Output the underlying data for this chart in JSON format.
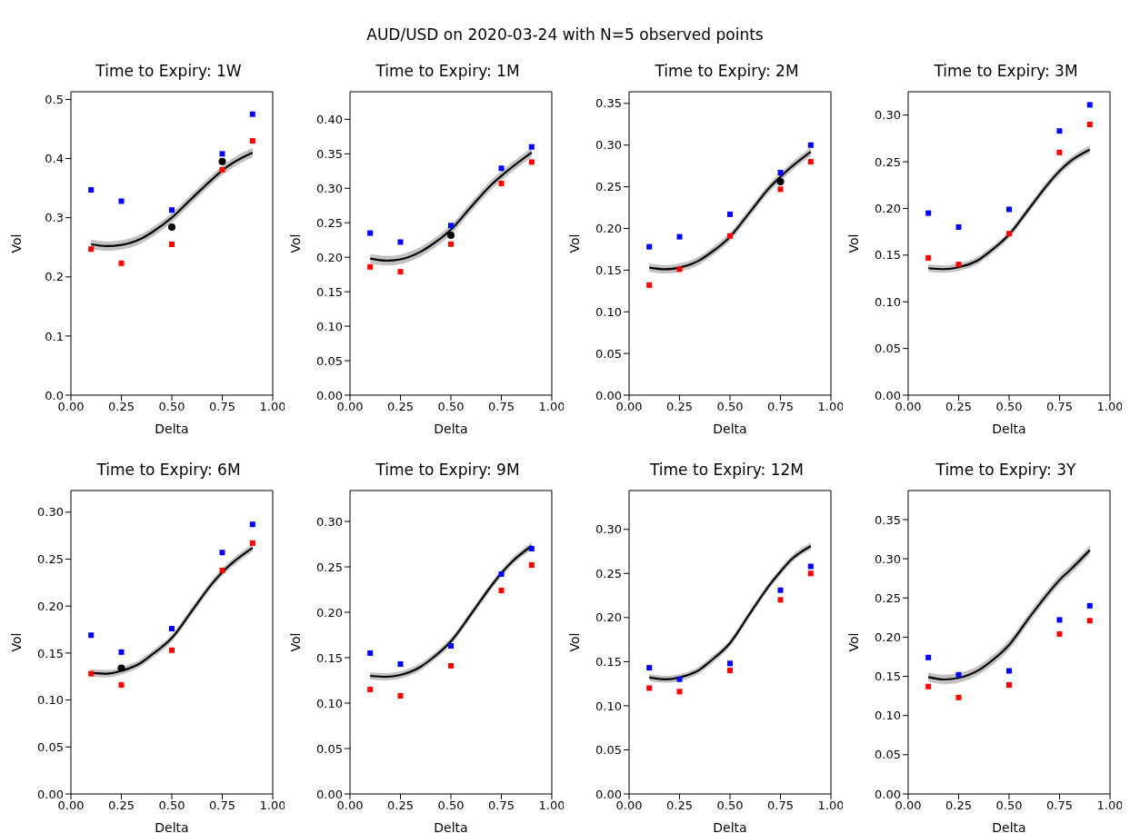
{
  "chart_data": [
    {
      "type": "line",
      "title": "Time to Expiry: 1W",
      "xlabel": "Delta",
      "ylabel": "Vol",
      "annotations": [
        "AUD/USD on 2020-03-24 with N=5 observed points"
      ],
      "xlim": [
        0,
        1
      ],
      "xticks": [
        {
          "value": 0,
          "label": "0.00"
        },
        {
          "value": 0.25,
          "label": "0.25"
        },
        {
          "value": 0.5,
          "label": "0.50"
        },
        {
          "value": 0.75,
          "label": "0.75"
        },
        {
          "value": 1,
          "label": "1.00"
        }
      ],
      "ylim": [
        0,
        0.513
      ],
      "yticks": [
        {
          "value": 0,
          "label": "0.0"
        },
        {
          "value": 0.1,
          "label": "0.1"
        },
        {
          "value": 0.2,
          "label": "0.2"
        },
        {
          "value": 0.3,
          "label": "0.3"
        },
        {
          "value": 0.4,
          "label": "0.4"
        },
        {
          "value": 0.5,
          "label": "0.5"
        }
      ],
      "series": [
        {
          "type": "line",
          "color": "#000000",
          "marker": "none",
          "x": [
            0.1,
            0.18,
            0.25,
            0.35,
            0.4,
            0.5,
            0.6,
            0.7,
            0.75,
            0.8,
            0.9
          ],
          "values": [
            0.255,
            0.252,
            0.254,
            0.265,
            0.275,
            0.3,
            0.333,
            0.365,
            0.38,
            0.392,
            0.41
          ],
          "lower": [
            0.247,
            0.244,
            0.246,
            0.257,
            0.267,
            0.292,
            0.325,
            0.357,
            0.372,
            0.384,
            0.402
          ],
          "upper": [
            0.263,
            0.26,
            0.262,
            0.273,
            0.283,
            0.308,
            0.341,
            0.373,
            0.388,
            0.4,
            0.418
          ]
        },
        {
          "type": "scatter",
          "color": "#0000ff",
          "marker": "square",
          "x": [
            0.1,
            0.25,
            0.5,
            0.75,
            0.9
          ],
          "values": [
            0.347,
            0.328,
            0.313,
            0.408,
            0.475
          ]
        },
        {
          "type": "scatter",
          "color": "#ff0000",
          "marker": "square",
          "x": [
            0.1,
            0.25,
            0.5,
            0.75,
            0.9
          ],
          "values": [
            0.247,
            0.223,
            0.255,
            0.381,
            0.43
          ]
        },
        {
          "type": "scatter",
          "color": "#000000",
          "marker": "circle",
          "x": [
            0.5,
            0.75
          ],
          "values": [
            0.284,
            0.395
          ]
        }
      ]
    },
    {
      "type": "line",
      "title": "Time to Expiry: 1M",
      "xlabel": "Delta",
      "ylabel": "Vol",
      "xlim": [
        0,
        1
      ],
      "xticks": [
        {
          "value": 0,
          "label": "0.00"
        },
        {
          "value": 0.25,
          "label": "0.25"
        },
        {
          "value": 0.5,
          "label": "0.50"
        },
        {
          "value": 0.75,
          "label": "0.75"
        },
        {
          "value": 1,
          "label": "1.00"
        }
      ],
      "ylim": [
        0,
        0.44
      ],
      "yticks": [
        {
          "value": 0,
          "label": "0.00"
        },
        {
          "value": 0.05,
          "label": "0.05"
        },
        {
          "value": 0.1,
          "label": "0.10"
        },
        {
          "value": 0.15,
          "label": "0.15"
        },
        {
          "value": 0.2,
          "label": "0.20"
        },
        {
          "value": 0.25,
          "label": "0.25"
        },
        {
          "value": 0.3,
          "label": "0.30"
        },
        {
          "value": 0.35,
          "label": "0.35"
        },
        {
          "value": 0.4,
          "label": "0.40"
        }
      ],
      "series": [
        {
          "type": "line",
          "color": "#000000",
          "marker": "none",
          "x": [
            0.1,
            0.18,
            0.25,
            0.35,
            0.4,
            0.5,
            0.6,
            0.7,
            0.75,
            0.8,
            0.9
          ],
          "values": [
            0.198,
            0.195,
            0.197,
            0.208,
            0.217,
            0.24,
            0.273,
            0.305,
            0.318,
            0.33,
            0.352
          ],
          "lower": [
            0.191,
            0.188,
            0.19,
            0.201,
            0.21,
            0.233,
            0.266,
            0.298,
            0.311,
            0.323,
            0.345
          ],
          "upper": [
            0.205,
            0.202,
            0.204,
            0.215,
            0.224,
            0.247,
            0.28,
            0.312,
            0.325,
            0.337,
            0.359
          ]
        },
        {
          "type": "scatter",
          "color": "#0000ff",
          "marker": "square",
          "x": [
            0.1,
            0.25,
            0.5,
            0.75,
            0.9
          ],
          "values": [
            0.235,
            0.222,
            0.246,
            0.329,
            0.36
          ]
        },
        {
          "type": "scatter",
          "color": "#ff0000",
          "marker": "square",
          "x": [
            0.1,
            0.25,
            0.5,
            0.75,
            0.9
          ],
          "values": [
            0.186,
            0.179,
            0.219,
            0.307,
            0.338
          ]
        },
        {
          "type": "scatter",
          "color": "#000000",
          "marker": "circle",
          "x": [
            0.5
          ],
          "values": [
            0.232
          ]
        }
      ]
    },
    {
      "type": "line",
      "title": "Time to Expiry: 2M",
      "xlabel": "Delta",
      "ylabel": "Vol",
      "xlim": [
        0,
        1
      ],
      "xticks": [
        {
          "value": 0,
          "label": "0.00"
        },
        {
          "value": 0.25,
          "label": "0.25"
        },
        {
          "value": 0.5,
          "label": "0.50"
        },
        {
          "value": 0.75,
          "label": "0.75"
        },
        {
          "value": 1,
          "label": "1.00"
        }
      ],
      "ylim": [
        0,
        0.364
      ],
      "yticks": [
        {
          "value": 0,
          "label": "0.00"
        },
        {
          "value": 0.05,
          "label": "0.05"
        },
        {
          "value": 0.1,
          "label": "0.10"
        },
        {
          "value": 0.15,
          "label": "0.15"
        },
        {
          "value": 0.2,
          "label": "0.20"
        },
        {
          "value": 0.25,
          "label": "0.25"
        },
        {
          "value": 0.3,
          "label": "0.30"
        },
        {
          "value": 0.35,
          "label": "0.35"
        }
      ],
      "series": [
        {
          "type": "line",
          "color": "#000000",
          "marker": "none",
          "x": [
            0.1,
            0.18,
            0.25,
            0.35,
            0.4,
            0.5,
            0.6,
            0.7,
            0.75,
            0.8,
            0.9
          ],
          "values": [
            0.153,
            0.151,
            0.153,
            0.162,
            0.17,
            0.19,
            0.22,
            0.25,
            0.262,
            0.273,
            0.292
          ],
          "lower": [
            0.148,
            0.146,
            0.148,
            0.157,
            0.165,
            0.185,
            0.215,
            0.245,
            0.257,
            0.268,
            0.287
          ],
          "upper": [
            0.158,
            0.156,
            0.158,
            0.167,
            0.175,
            0.195,
            0.225,
            0.255,
            0.267,
            0.278,
            0.297
          ]
        },
        {
          "type": "scatter",
          "color": "#0000ff",
          "marker": "square",
          "x": [
            0.1,
            0.25,
            0.5,
            0.75,
            0.9
          ],
          "values": [
            0.178,
            0.19,
            0.217,
            0.267,
            0.3
          ]
        },
        {
          "type": "scatter",
          "color": "#ff0000",
          "marker": "square",
          "x": [
            0.1,
            0.25,
            0.5,
            0.75,
            0.9
          ],
          "values": [
            0.132,
            0.151,
            0.191,
            0.247,
            0.28
          ]
        },
        {
          "type": "scatter",
          "color": "#000000",
          "marker": "circle",
          "x": [
            0.75
          ],
          "values": [
            0.256
          ]
        }
      ]
    },
    {
      "type": "line",
      "title": "Time to Expiry: 3M",
      "xlabel": "Delta",
      "ylabel": "Vol",
      "xlim": [
        0,
        1
      ],
      "xticks": [
        {
          "value": 0,
          "label": "0.00"
        },
        {
          "value": 0.25,
          "label": "0.25"
        },
        {
          "value": 0.5,
          "label": "0.50"
        },
        {
          "value": 0.75,
          "label": "0.75"
        },
        {
          "value": 1,
          "label": "1.00"
        }
      ],
      "ylim": [
        0,
        0.325
      ],
      "yticks": [
        {
          "value": 0,
          "label": "0.00"
        },
        {
          "value": 0.05,
          "label": "0.05"
        },
        {
          "value": 0.1,
          "label": "0.10"
        },
        {
          "value": 0.15,
          "label": "0.15"
        },
        {
          "value": 0.2,
          "label": "0.20"
        },
        {
          "value": 0.25,
          "label": "0.25"
        },
        {
          "value": 0.3,
          "label": "0.30"
        }
      ],
      "series": [
        {
          "type": "line",
          "color": "#000000",
          "marker": "none",
          "x": [
            0.1,
            0.18,
            0.25,
            0.35,
            0.4,
            0.5,
            0.6,
            0.7,
            0.75,
            0.8,
            0.9
          ],
          "values": [
            0.136,
            0.135,
            0.137,
            0.145,
            0.153,
            0.172,
            0.2,
            0.228,
            0.24,
            0.25,
            0.263
          ],
          "lower": [
            0.132,
            0.131,
            0.133,
            0.141,
            0.149,
            0.168,
            0.196,
            0.224,
            0.236,
            0.246,
            0.259
          ],
          "upper": [
            0.14,
            0.139,
            0.141,
            0.149,
            0.157,
            0.176,
            0.204,
            0.232,
            0.244,
            0.254,
            0.267
          ]
        },
        {
          "type": "scatter",
          "color": "#0000ff",
          "marker": "square",
          "x": [
            0.1,
            0.25,
            0.5,
            0.75,
            0.9
          ],
          "values": [
            0.195,
            0.18,
            0.199,
            0.283,
            0.311
          ]
        },
        {
          "type": "scatter",
          "color": "#ff0000",
          "marker": "square",
          "x": [
            0.1,
            0.25,
            0.5,
            0.75,
            0.9
          ],
          "values": [
            0.147,
            0.14,
            0.173,
            0.26,
            0.29
          ]
        }
      ]
    },
    {
      "type": "line",
      "title": "Time to Expiry: 6M",
      "xlabel": "Delta",
      "ylabel": "Vol",
      "xlim": [
        0,
        1
      ],
      "xticks": [
        {
          "value": 0,
          "label": "0.00"
        },
        {
          "value": 0.25,
          "label": "0.25"
        },
        {
          "value": 0.5,
          "label": "0.50"
        },
        {
          "value": 0.75,
          "label": "0.75"
        },
        {
          "value": 1,
          "label": "1.00"
        }
      ],
      "ylim": [
        0,
        0.323
      ],
      "yticks": [
        {
          "value": 0,
          "label": "0.00"
        },
        {
          "value": 0.05,
          "label": "0.05"
        },
        {
          "value": 0.1,
          "label": "0.10"
        },
        {
          "value": 0.15,
          "label": "0.15"
        },
        {
          "value": 0.2,
          "label": "0.20"
        },
        {
          "value": 0.25,
          "label": "0.25"
        },
        {
          "value": 0.3,
          "label": "0.30"
        }
      ],
      "series": [
        {
          "type": "line",
          "color": "#000000",
          "marker": "none",
          "x": [
            0.1,
            0.18,
            0.25,
            0.35,
            0.4,
            0.5,
            0.6,
            0.7,
            0.75,
            0.8,
            0.9
          ],
          "values": [
            0.129,
            0.128,
            0.131,
            0.14,
            0.148,
            0.166,
            0.195,
            0.224,
            0.236,
            0.246,
            0.262
          ],
          "lower": [
            0.125,
            0.124,
            0.127,
            0.136,
            0.144,
            0.162,
            0.191,
            0.22,
            0.232,
            0.242,
            0.258
          ],
          "upper": [
            0.133,
            0.132,
            0.135,
            0.144,
            0.152,
            0.17,
            0.199,
            0.228,
            0.24,
            0.25,
            0.266
          ]
        },
        {
          "type": "scatter",
          "color": "#0000ff",
          "marker": "square",
          "x": [
            0.1,
            0.25,
            0.5,
            0.75,
            0.9
          ],
          "values": [
            0.169,
            0.151,
            0.176,
            0.257,
            0.287
          ]
        },
        {
          "type": "scatter",
          "color": "#ff0000",
          "marker": "square",
          "x": [
            0.1,
            0.25,
            0.5,
            0.75,
            0.9
          ],
          "values": [
            0.128,
            0.116,
            0.153,
            0.238,
            0.267
          ]
        },
        {
          "type": "scatter",
          "color": "#000000",
          "marker": "circle",
          "x": [
            0.25
          ],
          "values": [
            0.134
          ]
        }
      ]
    },
    {
      "type": "line",
      "title": "Time to Expiry: 9M",
      "xlabel": "Delta",
      "ylabel": "Vol",
      "xlim": [
        0,
        1
      ],
      "xticks": [
        {
          "value": 0,
          "label": "0.00"
        },
        {
          "value": 0.25,
          "label": "0.25"
        },
        {
          "value": 0.5,
          "label": "0.50"
        },
        {
          "value": 0.75,
          "label": "0.75"
        },
        {
          "value": 1,
          "label": "1.00"
        }
      ],
      "ylim": [
        0,
        0.334
      ],
      "yticks": [
        {
          "value": 0,
          "label": "0.00"
        },
        {
          "value": 0.05,
          "label": "0.05"
        },
        {
          "value": 0.1,
          "label": "0.10"
        },
        {
          "value": 0.15,
          "label": "0.15"
        },
        {
          "value": 0.2,
          "label": "0.20"
        },
        {
          "value": 0.25,
          "label": "0.25"
        },
        {
          "value": 0.3,
          "label": "0.30"
        }
      ],
      "series": [
        {
          "type": "line",
          "color": "#000000",
          "marker": "none",
          "x": [
            0.1,
            0.18,
            0.25,
            0.35,
            0.4,
            0.5,
            0.6,
            0.7,
            0.75,
            0.8,
            0.9
          ],
          "values": [
            0.13,
            0.129,
            0.131,
            0.14,
            0.148,
            0.168,
            0.198,
            0.229,
            0.243,
            0.255,
            0.273
          ],
          "lower": [
            0.126,
            0.125,
            0.127,
            0.136,
            0.144,
            0.164,
            0.194,
            0.225,
            0.239,
            0.251,
            0.269
          ],
          "upper": [
            0.134,
            0.133,
            0.135,
            0.144,
            0.152,
            0.172,
            0.202,
            0.233,
            0.247,
            0.259,
            0.277
          ]
        },
        {
          "type": "scatter",
          "color": "#0000ff",
          "marker": "square",
          "x": [
            0.1,
            0.25,
            0.5,
            0.75,
            0.9
          ],
          "values": [
            0.155,
            0.143,
            0.163,
            0.242,
            0.27
          ]
        },
        {
          "type": "scatter",
          "color": "#ff0000",
          "marker": "square",
          "x": [
            0.1,
            0.25,
            0.5,
            0.75,
            0.9
          ],
          "values": [
            0.115,
            0.108,
            0.141,
            0.224,
            0.252
          ]
        }
      ]
    },
    {
      "type": "line",
      "title": "Time to Expiry: 12M",
      "xlabel": "Delta",
      "ylabel": "Vol",
      "xlim": [
        0,
        1
      ],
      "xticks": [
        {
          "value": 0,
          "label": "0.00"
        },
        {
          "value": 0.25,
          "label": "0.25"
        },
        {
          "value": 0.5,
          "label": "0.50"
        },
        {
          "value": 0.75,
          "label": "0.75"
        },
        {
          "value": 1,
          "label": "1.00"
        }
      ],
      "ylim": [
        0,
        0.344
      ],
      "yticks": [
        {
          "value": 0,
          "label": "0.00"
        },
        {
          "value": 0.05,
          "label": "0.05"
        },
        {
          "value": 0.1,
          "label": "0.10"
        },
        {
          "value": 0.15,
          "label": "0.15"
        },
        {
          "value": 0.2,
          "label": "0.20"
        },
        {
          "value": 0.25,
          "label": "0.25"
        },
        {
          "value": 0.3,
          "label": "0.30"
        }
      ],
      "series": [
        {
          "type": "line",
          "color": "#000000",
          "marker": "none",
          "x": [
            0.1,
            0.18,
            0.25,
            0.35,
            0.4,
            0.5,
            0.6,
            0.7,
            0.75,
            0.8,
            0.9
          ],
          "values": [
            0.132,
            0.13,
            0.132,
            0.141,
            0.15,
            0.171,
            0.205,
            0.238,
            0.252,
            0.265,
            0.281
          ],
          "lower": [
            0.128,
            0.126,
            0.128,
            0.137,
            0.146,
            0.167,
            0.201,
            0.234,
            0.248,
            0.261,
            0.277
          ],
          "upper": [
            0.136,
            0.134,
            0.136,
            0.145,
            0.154,
            0.175,
            0.209,
            0.242,
            0.256,
            0.269,
            0.285
          ]
        },
        {
          "type": "scatter",
          "color": "#0000ff",
          "marker": "square",
          "x": [
            0.1,
            0.25,
            0.5,
            0.75,
            0.9
          ],
          "values": [
            0.143,
            0.13,
            0.148,
            0.231,
            0.258
          ]
        },
        {
          "type": "scatter",
          "color": "#ff0000",
          "marker": "square",
          "x": [
            0.1,
            0.25,
            0.5,
            0.75,
            0.9
          ],
          "values": [
            0.12,
            0.116,
            0.14,
            0.22,
            0.25
          ]
        }
      ]
    },
    {
      "type": "line",
      "title": "Time to Expiry: 3Y",
      "xlabel": "Delta",
      "ylabel": "Vol",
      "xlim": [
        0,
        1
      ],
      "xticks": [
        {
          "value": 0,
          "label": "0.00"
        },
        {
          "value": 0.25,
          "label": "0.25"
        },
        {
          "value": 0.5,
          "label": "0.50"
        },
        {
          "value": 0.75,
          "label": "0.75"
        },
        {
          "value": 1,
          "label": "1.00"
        }
      ],
      "ylim": [
        0,
        0.387
      ],
      "yticks": [
        {
          "value": 0,
          "label": "0.00"
        },
        {
          "value": 0.05,
          "label": "0.05"
        },
        {
          "value": 0.1,
          "label": "0.10"
        },
        {
          "value": 0.15,
          "label": "0.15"
        },
        {
          "value": 0.2,
          "label": "0.20"
        },
        {
          "value": 0.25,
          "label": "0.25"
        },
        {
          "value": 0.3,
          "label": "0.30"
        },
        {
          "value": 0.35,
          "label": "0.35"
        }
      ],
      "series": [
        {
          "type": "line",
          "color": "#000000",
          "marker": "none",
          "x": [
            0.1,
            0.18,
            0.25,
            0.35,
            0.4,
            0.5,
            0.6,
            0.7,
            0.75,
            0.8,
            0.9
          ],
          "values": [
            0.149,
            0.146,
            0.148,
            0.158,
            0.167,
            0.19,
            0.225,
            0.258,
            0.273,
            0.285,
            0.311
          ],
          "lower": [
            0.143,
            0.14,
            0.142,
            0.152,
            0.161,
            0.184,
            0.219,
            0.252,
            0.267,
            0.279,
            0.305
          ],
          "upper": [
            0.155,
            0.152,
            0.154,
            0.164,
            0.173,
            0.196,
            0.231,
            0.264,
            0.279,
            0.291,
            0.317
          ]
        },
        {
          "type": "scatter",
          "color": "#0000ff",
          "marker": "square",
          "x": [
            0.1,
            0.25,
            0.5,
            0.75,
            0.9
          ],
          "values": [
            0.174,
            0.152,
            0.157,
            0.222,
            0.24
          ]
        },
        {
          "type": "scatter",
          "color": "#ff0000",
          "marker": "square",
          "x": [
            0.1,
            0.25,
            0.5,
            0.75,
            0.9
          ],
          "values": [
            0.137,
            0.123,
            0.139,
            0.204,
            0.221
          ]
        }
      ]
    }
  ]
}
